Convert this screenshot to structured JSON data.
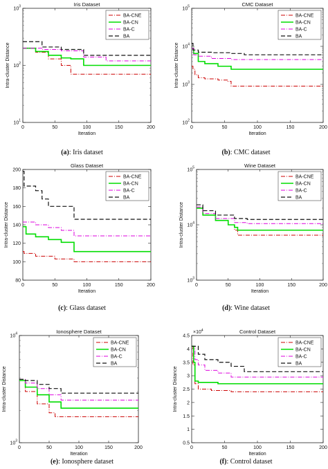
{
  "legend_labels": [
    "BA-CNE",
    "BA-CN",
    "BA-C",
    "BA"
  ],
  "series_colors": {
    "BA-CNE": "#cc0000",
    "BA-CN": "#00dd00",
    "BA-C": "#dd00dd",
    "BA": "#111111"
  },
  "chart_data": [
    {
      "type": "line",
      "title": "Iris Dataset",
      "xlabel": "Iteration",
      "ylabel": "Intra-cluster Distance",
      "xlim": [
        0,
        200
      ],
      "ylim": [
        10,
        1000
      ],
      "yscale": "log",
      "xticks": [
        "0",
        "50",
        "100",
        "150",
        "200"
      ],
      "yticks": [
        {
          "v": 10,
          "b": "10",
          "e": "1"
        },
        {
          "v": 100,
          "b": "10",
          "e": "2"
        },
        {
          "v": 1000,
          "b": "10",
          "e": "3"
        }
      ],
      "legend": "top-right",
      "series": [
        {
          "name": "BA-CNE",
          "x": [
            0,
            20,
            40,
            60,
            75,
            200
          ],
          "y": [
            200,
            170,
            130,
            100,
            70,
            70
          ]
        },
        {
          "name": "BA-CN",
          "x": [
            0,
            20,
            40,
            60,
            75,
            95,
            200
          ],
          "y": [
            200,
            175,
            150,
            135,
            130,
            100,
            100
          ]
        },
        {
          "name": "BA-C",
          "x": [
            0,
            30,
            60,
            95,
            130,
            200
          ],
          "y": [
            200,
            190,
            180,
            140,
            120,
            120
          ]
        },
        {
          "name": "BA",
          "x": [
            0,
            30,
            60,
            95,
            200
          ],
          "y": [
            260,
            210,
            190,
            150,
            150
          ]
        }
      ]
    },
    {
      "type": "line",
      "title": "CMC Dataset",
      "xlabel": "Iteration",
      "ylabel": "Intra-cluster Distance",
      "xlim": [
        0,
        200
      ],
      "ylim": [
        100,
        100000
      ],
      "yscale": "log",
      "xticks": [
        "0",
        "50",
        "100",
        "150",
        "200"
      ],
      "yticks": [
        {
          "v": 100,
          "b": "10",
          "e": "2"
        },
        {
          "v": 1000,
          "b": "10",
          "e": "3"
        },
        {
          "v": 10000,
          "b": "10",
          "e": "4"
        },
        {
          "v": 100000,
          "b": "10",
          "e": "5"
        }
      ],
      "legend": "top-right",
      "series": [
        {
          "name": "BA-CNE",
          "x": [
            0,
            2,
            5,
            10,
            20,
            40,
            55,
            60,
            200
          ],
          "y": [
            3000,
            2500,
            1800,
            1500,
            1400,
            1300,
            1200,
            900,
            900
          ]
        },
        {
          "name": "BA-CN",
          "x": [
            0,
            3,
            10,
            20,
            40,
            60,
            200
          ],
          "y": [
            9000,
            6500,
            4000,
            3500,
            3000,
            2500,
            2500
          ]
        },
        {
          "name": "BA-C",
          "x": [
            0,
            3,
            10,
            30,
            60,
            200
          ],
          "y": [
            9000,
            6000,
            5500,
            4800,
            4500,
            4500
          ]
        },
        {
          "name": "BA",
          "x": [
            0,
            2,
            10,
            30,
            60,
            80,
            200
          ],
          "y": [
            12000,
            8000,
            7000,
            6800,
            6500,
            6000,
            6000
          ]
        }
      ]
    },
    {
      "type": "line",
      "title": "Glass Dataset",
      "xlabel": "Iteration",
      "ylabel": "Intra-cluster Distance",
      "xlim": [
        0,
        200
      ],
      "ylim": [
        80,
        200
      ],
      "yscale": "linear",
      "xticks": [
        "0",
        "50",
        "100",
        "150",
        "200"
      ],
      "yticks": [
        {
          "v": 80,
          "t": "80"
        },
        {
          "v": 100,
          "t": "100"
        },
        {
          "v": 120,
          "t": "120"
        },
        {
          "v": 140,
          "t": "140"
        },
        {
          "v": 160,
          "t": "160"
        },
        {
          "v": 180,
          "t": "180"
        },
        {
          "v": 200,
          "t": "200"
        }
      ],
      "legend": "top-right",
      "series": [
        {
          "name": "BA-CNE",
          "x": [
            0,
            2,
            20,
            50,
            80,
            200
          ],
          "y": [
            111,
            109,
            106,
            103,
            100,
            100
          ]
        },
        {
          "name": "BA-CN",
          "x": [
            0,
            5,
            20,
            40,
            60,
            80,
            200
          ],
          "y": [
            138,
            130,
            127,
            124,
            121,
            111,
            111
          ]
        },
        {
          "name": "BA-C",
          "x": [
            0,
            20,
            40,
            60,
            80,
            200
          ],
          "y": [
            143,
            140,
            137,
            134,
            128,
            128
          ]
        },
        {
          "name": "BA",
          "x": [
            0,
            2,
            20,
            30,
            40,
            60,
            80,
            200
          ],
          "y": [
            198,
            182,
            177,
            168,
            160,
            160,
            146,
            146
          ]
        }
      ]
    },
    {
      "type": "line",
      "title": "Wine Dataset",
      "xlabel": "Iteration",
      "ylabel": "Intra-cluster Distance",
      "xlim": [
        0,
        200
      ],
      "ylim": [
        1000,
        100000
      ],
      "yscale": "log",
      "xticks": [
        "0",
        "50",
        "100",
        "150",
        "200"
      ],
      "yticks": [
        {
          "v": 1000,
          "b": "10",
          "e": "3"
        },
        {
          "v": 10000,
          "b": "10",
          "e": "4"
        },
        {
          "v": 100000,
          "b": "10",
          "e": "5"
        }
      ],
      "legend": "top-right",
      "series": [
        {
          "name": "BA-CNE",
          "x": [
            0,
            10,
            30,
            50,
            60,
            65,
            200
          ],
          "y": [
            20000,
            15000,
            12000,
            10000,
            8000,
            6500,
            6500
          ]
        },
        {
          "name": "BA-CN",
          "x": [
            0,
            10,
            30,
            50,
            60,
            65,
            200
          ],
          "y": [
            20000,
            15000,
            12000,
            10000,
            9000,
            8000,
            8000
          ]
        },
        {
          "name": "BA-C",
          "x": [
            0,
            10,
            30,
            60,
            80,
            200
          ],
          "y": [
            21000,
            16000,
            13000,
            11000,
            10500,
            10500
          ]
        },
        {
          "name": "BA",
          "x": [
            0,
            10,
            30,
            60,
            80,
            200
          ],
          "y": [
            23000,
            18000,
            15000,
            13000,
            12500,
            12500
          ]
        }
      ]
    },
    {
      "type": "line",
      "title": "Ionosphere Dataset",
      "xlabel": "Iteration",
      "ylabel": "Intra-cluster Distance",
      "xlim": [
        0,
        200
      ],
      "ylim": [
        1000,
        10000
      ],
      "yscale": "log",
      "xticks": [
        "0",
        "50",
        "100",
        "150",
        "200"
      ],
      "yticks": [
        {
          "v": 1000,
          "b": "10",
          "e": "3"
        },
        {
          "v": 10000,
          "b": "10",
          "e": "4"
        }
      ],
      "legend": "top-right",
      "series": [
        {
          "name": "BA-CNE",
          "x": [
            0,
            10,
            30,
            50,
            60,
            200
          ],
          "y": [
            3800,
            3000,
            2300,
            1900,
            1750,
            1750
          ]
        },
        {
          "name": "BA-CN",
          "x": [
            0,
            10,
            30,
            50,
            70,
            200
          ],
          "y": [
            3800,
            3300,
            2800,
            2400,
            2100,
            2100
          ]
        },
        {
          "name": "BA-C",
          "x": [
            0,
            10,
            30,
            50,
            70,
            200
          ],
          "y": [
            3900,
            3600,
            3200,
            2800,
            2500,
            2500
          ]
        },
        {
          "name": "BA",
          "x": [
            0,
            10,
            30,
            50,
            70,
            200
          ],
          "y": [
            3900,
            3800,
            3500,
            3200,
            2900,
            2900
          ]
        }
      ]
    },
    {
      "type": "line",
      "title": "Control Dataset",
      "xlabel": "Iteration",
      "ylabel": "Intra-cluster Distance",
      "xlim": [
        0,
        200
      ],
      "ylim": [
        0.5,
        4.5
      ],
      "yscale": "linear",
      "multiplier": "×10",
      "multiplier_exp": "4",
      "xticks": [
        "0",
        "50",
        "100",
        "150",
        "200"
      ],
      "yticks": [
        {
          "v": 0.5,
          "t": "0.5"
        },
        {
          "v": 1,
          "t": "1"
        },
        {
          "v": 1.5,
          "t": "1.5"
        },
        {
          "v": 2,
          "t": "2"
        },
        {
          "v": 2.5,
          "t": "2.5"
        },
        {
          "v": 3,
          "t": "3"
        },
        {
          "v": 3.5,
          "t": "3.5"
        },
        {
          "v": 4,
          "t": "4"
        },
        {
          "v": 4.5,
          "t": "4.5"
        }
      ],
      "legend": "top-right",
      "series": [
        {
          "name": "BA-CNE",
          "x": [
            0,
            2,
            5,
            10,
            30,
            60,
            200
          ],
          "y": [
            4.1,
            3.4,
            2.7,
            2.5,
            2.45,
            2.4,
            2.4
          ]
        },
        {
          "name": "BA-CN",
          "x": [
            0,
            3,
            5,
            10,
            40,
            60,
            200
          ],
          "y": [
            4.1,
            3.5,
            2.8,
            2.75,
            2.7,
            2.7,
            2.7
          ]
        },
        {
          "name": "BA-C",
          "x": [
            0,
            5,
            10,
            20,
            40,
            60,
            200
          ],
          "y": [
            4.1,
            3.6,
            3.4,
            3.2,
            3.1,
            2.95,
            2.95
          ]
        },
        {
          "name": "BA",
          "x": [
            0,
            10,
            20,
            40,
            60,
            80,
            200
          ],
          "y": [
            4.1,
            3.8,
            3.6,
            3.5,
            3.35,
            3.15,
            3.15
          ]
        }
      ]
    }
  ],
  "captions": [
    {
      "label": "(a)",
      "text": ": Iris dataset"
    },
    {
      "label": "(b)",
      "text": ": CMC dataset"
    },
    {
      "label": "(c)",
      "text": ": Glass dataset"
    },
    {
      "label": "(d)",
      "text": ": Wine dataset"
    },
    {
      "label": "(e)",
      "text": ": Ionosphere dataset"
    },
    {
      "label": "(f)",
      "text": ": Control dataset"
    }
  ]
}
